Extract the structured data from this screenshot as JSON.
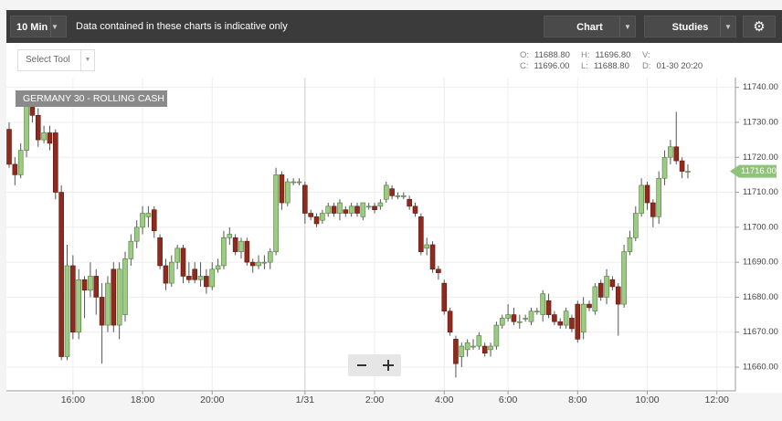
{
  "toolbar": {
    "interval": "10 Min",
    "disclaimer": "Data contained in these charts is indicative only",
    "chart_button": "Chart",
    "studies_button": "Studies",
    "select_tool": "Select Tool"
  },
  "ohlc_info": [
    {
      "label": "O:",
      "value": "11688.80"
    },
    {
      "label": "H:",
      "value": "11696.80"
    },
    {
      "label": "V:"
    },
    {
      "label": "C:",
      "value": "11696.00"
    },
    {
      "label": "L:",
      "value": "11688.80"
    },
    {
      "label": "D:",
      "value": "01-30 20:20"
    }
  ],
  "chart_data": {
    "type": "candlestick",
    "title": "GERMANY 30 - ROLLING CASH",
    "categories": [
      null,
      null,
      null,
      null,
      null,
      null,
      null,
      null,
      null,
      null,
      null,
      "16:00",
      null,
      null,
      null,
      null,
      null,
      null,
      null,
      null,
      null,
      null,
      null,
      "18:00",
      null,
      null,
      null,
      null,
      null,
      null,
      null,
      null,
      null,
      null,
      null,
      "20:00",
      null,
      null,
      null,
      null,
      null,
      null,
      null,
      null,
      null,
      null,
      null,
      null,
      null,
      null,
      null,
      "1/31",
      null,
      null,
      null,
      null,
      null,
      null,
      null,
      null,
      null,
      null,
      null,
      "2:00",
      null,
      null,
      null,
      null,
      null,
      null,
      null,
      null,
      null,
      null,
      null,
      "4:00",
      null,
      null,
      null,
      null,
      null,
      null,
      null,
      null,
      null,
      null,
      "6:00",
      null,
      null,
      null,
      null,
      null,
      null,
      null,
      null,
      null,
      null,
      null,
      "8:00",
      null,
      null,
      null,
      null,
      null,
      null,
      null,
      null,
      null,
      null,
      null,
      "10:00",
      null,
      null,
      null,
      null,
      null,
      null,
      null,
      null,
      null,
      null,
      null,
      "12:00"
    ],
    "open": [
      11728,
      11718,
      11715,
      11722,
      11735,
      11732,
      11725,
      11727,
      11727,
      11710,
      11663,
      11689,
      11670,
      11685,
      11682,
      11686,
      11680,
      11672,
      11688,
      11672,
      11675,
      11691,
      11696,
      11700,
      11703,
      11705,
      11697,
      11689,
      11684,
      11690,
      11694,
      11686,
      11688,
      11685,
      11686,
      11683,
      11688,
      11689,
      11697,
      11697,
      11693,
      11696,
      11690,
      11689,
      11690,
      11690,
      11693,
      11715,
      11707,
      11713,
      11713,
      11712,
      11704,
      11703,
      11702,
      11704,
      11706,
      11704,
      11705,
      11704,
      11706,
      11703,
      11706,
      11706,
      11706,
      11708,
      11711,
      11709,
      11709,
      11708,
      11706,
      11703,
      11694,
      11695,
      11688,
      11684,
      11676,
      11668,
      11663,
      11665,
      11666,
      11666,
      11666,
      11665,
      11666,
      11672,
      11674,
      11675,
      11673,
      11674,
      11673,
      11676,
      11675,
      11679,
      11675,
      11673,
      11672,
      11674,
      11678,
      11670,
      11678,
      11676,
      11684,
      11680,
      11685,
      11683,
      11678,
      11693,
      11697,
      11704,
      11712,
      11707,
      11703,
      11714,
      11720,
      11723,
      11719,
      11716,
      null,
      null,
      null,
      null,
      null
    ],
    "high": [
      11730,
      11720,
      11724,
      11737,
      11738,
      11734,
      11729,
      11729,
      11728,
      11712,
      11695,
      11692,
      11688,
      11686,
      11690,
      11688,
      11684,
      11686,
      11690,
      11690,
      11693,
      11698,
      11702,
      11706,
      11706,
      11706,
      11698,
      11691,
      11692,
      11695,
      11695,
      11690,
      11690,
      11690,
      11688,
      11690,
      11691,
      11699,
      11700,
      11698,
      11697,
      11697,
      11691,
      11692,
      11692,
      11694,
      11717,
      11716,
      11714,
      11714,
      11714,
      11713,
      11705,
      11704,
      11705,
      11707,
      11707,
      11708,
      11706,
      11707,
      11707,
      11707,
      11707,
      11707,
      11708,
      11713,
      11712,
      11710,
      11710,
      11709,
      11707,
      11704,
      11697,
      11696,
      11689,
      11685,
      11677,
      11669,
      11667,
      11668,
      11668,
      11670,
      11667,
      11667,
      11673,
      11675,
      11678,
      11677,
      11675,
      11675,
      11677,
      11677,
      11682,
      11681,
      11676,
      11674,
      11677,
      11675,
      11679,
      11680,
      11679,
      11684,
      11685,
      11688,
      11686,
      11684,
      11695,
      11699,
      11706,
      11714,
      11713,
      11708,
      11716,
      11722,
      11725,
      11733,
      11720,
      11718,
      null,
      null,
      null,
      null,
      null
    ],
    "low": [
      11717,
      11712,
      11714,
      11720,
      11730,
      11723,
      11724,
      11722,
      11708,
      11662,
      11662,
      11668,
      11668,
      11674,
      11680,
      11675,
      11661,
      11670,
      11670,
      11668,
      11673,
      11689,
      11694,
      11698,
      11700,
      11697,
      11688,
      11682,
      11683,
      11688,
      11684,
      11684,
      11684,
      11683,
      11681,
      11682,
      11687,
      11688,
      11695,
      11692,
      11691,
      11689,
      11687,
      11688,
      11688,
      11688,
      11692,
      11705,
      11706,
      11712,
      11712,
      11701,
      11702,
      11700,
      11701,
      11703,
      11703,
      11702,
      11703,
      11703,
      11703,
      11702,
      11705,
      11704,
      11705,
      11707,
      11708,
      11708,
      11708,
      11705,
      11703,
      11692,
      11692,
      11687,
      11685,
      11675,
      11669,
      11657,
      11660,
      11663,
      11665,
      11665,
      11663,
      11663,
      11665,
      11671,
      11673,
      11672,
      11671,
      11673,
      11672,
      11675,
      11673,
      11674,
      11672,
      11671,
      11671,
      11670,
      11667,
      11668,
      11676,
      11675,
      11679,
      11678,
      11682,
      11669,
      11677,
      11692,
      11696,
      11703,
      11705,
      11700,
      11701,
      11712,
      11718,
      11718,
      11714,
      11714,
      null,
      null,
      null,
      null,
      null
    ],
    "close": [
      11718,
      11715,
      11722,
      11735,
      11732,
      11725,
      11727,
      11724,
      11710,
      11663,
      11689,
      11670,
      11685,
      11682,
      11686,
      11680,
      11672,
      11684,
      11672,
      11688,
      11691,
      11696,
      11700,
      11704,
      11704,
      11699,
      11689,
      11684,
      11690,
      11694,
      11686,
      11685,
      11685,
      11686,
      11683,
      11688,
      11689,
      11697,
      11698,
      11693,
      11696,
      11690,
      11689,
      11690,
      11690,
      11693,
      11715,
      11707,
      11713,
      11713,
      11713,
      11704,
      11703,
      11701,
      11704,
      11706,
      11704,
      11707,
      11704,
      11706,
      11704,
      11707,
      11706,
      11705,
      11707,
      11712,
      11709,
      11709,
      11709,
      11706,
      11704,
      11693,
      11695,
      11688,
      11687,
      11676,
      11670,
      11661,
      11666,
      11667,
      11666,
      11669,
      11664,
      11666,
      11672,
      11674,
      11675,
      11673,
      11673,
      11674,
      11676,
      11676,
      11681,
      11675,
      11673,
      11672,
      11676,
      11671,
      11668,
      11678,
      11677,
      11683,
      11680,
      11686,
      11683,
      11678,
      11693,
      11697,
      11704,
      11712,
      11707,
      11703,
      11714,
      11720,
      11723,
      11719,
      11716,
      11716,
      null,
      null,
      null,
      null,
      null
    ],
    "up_color": "#9ccc82",
    "down_color": "#8e2a1e",
    "ylim": [
      11654,
      11742
    ],
    "yticks": [
      {
        "value": 11660,
        "label": "11660.00"
      },
      {
        "value": 11670,
        "label": "11670.00"
      },
      {
        "value": 11680,
        "label": "11680.00"
      },
      {
        "value": 11690,
        "label": "11690.00"
      },
      {
        "value": 11700,
        "label": "11700.00"
      },
      {
        "value": 11710,
        "label": "11710.00"
      },
      {
        "value": 11720,
        "label": "11720.00"
      },
      {
        "value": 11730,
        "label": "11730.00"
      },
      {
        "value": 11740,
        "label": "11740.00"
      }
    ],
    "last_price": {
      "value": 11716,
      "label": "11716.00"
    },
    "grid": true
  }
}
